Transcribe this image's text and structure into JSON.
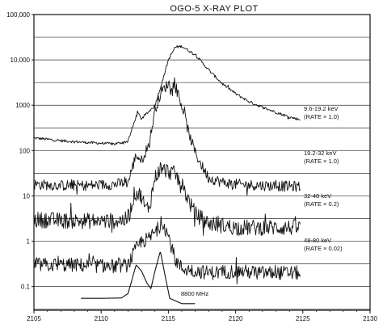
{
  "chart_data": {
    "type": "line",
    "title": "OGO-5 X-RAY PLOT",
    "xlabel": "",
    "ylabel": "",
    "xlim": [
      2105,
      2130
    ],
    "x_ticks": [
      "2105",
      "2110",
      "2115",
      "2120",
      "2125",
      "2130"
    ],
    "y_scale": "log",
    "ylim": [
      0.03,
      100000
    ],
    "y_ticks": [
      "100,000",
      "10,000",
      "1000",
      "100",
      "10",
      "1",
      "0.1"
    ],
    "grid": "horizontal",
    "series": [
      {
        "name": "9.6-19.2 keV",
        "scale_note": "(RATE × 1.0)",
        "noise": 0.03,
        "points": [
          [
            2105,
            190
          ],
          [
            2107,
            165
          ],
          [
            2109,
            150
          ],
          [
            2111,
            140
          ],
          [
            2112,
            160
          ],
          [
            2112.7,
            700
          ],
          [
            2113,
            500
          ],
          [
            2113.5,
            700
          ],
          [
            2114,
            1000
          ],
          [
            2114.5,
            3000
          ],
          [
            2115,
            10000
          ],
          [
            2115.5,
            19000
          ],
          [
            2116,
            20000
          ],
          [
            2117,
            13000
          ],
          [
            2118,
            6000
          ],
          [
            2119,
            3000
          ],
          [
            2120,
            1800
          ],
          [
            2121,
            1200
          ],
          [
            2122,
            900
          ],
          [
            2123,
            700
          ],
          [
            2124,
            550
          ],
          [
            2124.8,
            480
          ]
        ]
      },
      {
        "name": "19.2-32 keV",
        "scale_note": "(RATE × 1.0)",
        "noise": 0.12,
        "points": [
          [
            2105,
            18
          ],
          [
            2107,
            17
          ],
          [
            2109,
            17
          ],
          [
            2111,
            18
          ],
          [
            2112,
            20
          ],
          [
            2112.6,
            80
          ],
          [
            2113,
            60
          ],
          [
            2113.6,
            150
          ],
          [
            2114,
            800
          ],
          [
            2114.5,
            2000
          ],
          [
            2115,
            3000
          ],
          [
            2115.5,
            2700
          ],
          [
            2116,
            1000
          ],
          [
            2116.5,
            250
          ],
          [
            2117,
            90
          ],
          [
            2117.5,
            45
          ],
          [
            2118,
            25
          ],
          [
            2119,
            20
          ],
          [
            2120,
            18
          ],
          [
            2122,
            17
          ],
          [
            2124.8,
            16
          ]
        ]
      },
      {
        "name": "32-48 keV",
        "scale_note": "(RATE × 0.2)",
        "noise": 0.18,
        "points": [
          [
            2105,
            3
          ],
          [
            2108,
            2.8
          ],
          [
            2111,
            2.8
          ],
          [
            2112,
            3
          ],
          [
            2112.5,
            12
          ],
          [
            2113,
            10
          ],
          [
            2113.3,
            5
          ],
          [
            2113.6,
            6
          ],
          [
            2114,
            25
          ],
          [
            2114.4,
            40
          ],
          [
            2115,
            35
          ],
          [
            2115.5,
            30
          ],
          [
            2116,
            18
          ],
          [
            2116.5,
            8
          ],
          [
            2117,
            4
          ],
          [
            2118,
            2.5
          ],
          [
            2120,
            2
          ],
          [
            2122,
            2
          ],
          [
            2124.8,
            2
          ]
        ]
      },
      {
        "name": "48-80 keV",
        "scale_note": "(RATE × 0.02)",
        "noise": 0.16,
        "points": [
          [
            2105,
            0.3
          ],
          [
            2108,
            0.3
          ],
          [
            2111,
            0.28
          ],
          [
            2112,
            0.3
          ],
          [
            2112.5,
            0.6
          ],
          [
            2113,
            1.0
          ],
          [
            2113.5,
            1.1
          ],
          [
            2114,
            1.6
          ],
          [
            2114.6,
            2.6
          ],
          [
            2115,
            1.3
          ],
          [
            2115.5,
            0.4
          ],
          [
            2116,
            0.25
          ],
          [
            2118,
            0.2
          ],
          [
            2120,
            0.22
          ],
          [
            2122,
            0.2
          ],
          [
            2124.8,
            0.2
          ]
        ]
      },
      {
        "name": "8800 MHz",
        "scale_note": "",
        "noise": 0,
        "points": [
          [
            2108.5,
            0.055
          ],
          [
            2110,
            0.055
          ],
          [
            2111.5,
            0.056
          ],
          [
            2112,
            0.07
          ],
          [
            2112.6,
            0.3
          ],
          [
            2113,
            0.22
          ],
          [
            2113.4,
            0.12
          ],
          [
            2113.7,
            0.09
          ],
          [
            2114,
            0.22
          ],
          [
            2114.4,
            0.6
          ],
          [
            2114.8,
            0.15
          ],
          [
            2115.1,
            0.055
          ],
          [
            2116,
            0.042
          ],
          [
            2117,
            0.042
          ]
        ]
      }
    ],
    "colors": {
      "ink": "#111111",
      "grid": "#333333"
    }
  }
}
